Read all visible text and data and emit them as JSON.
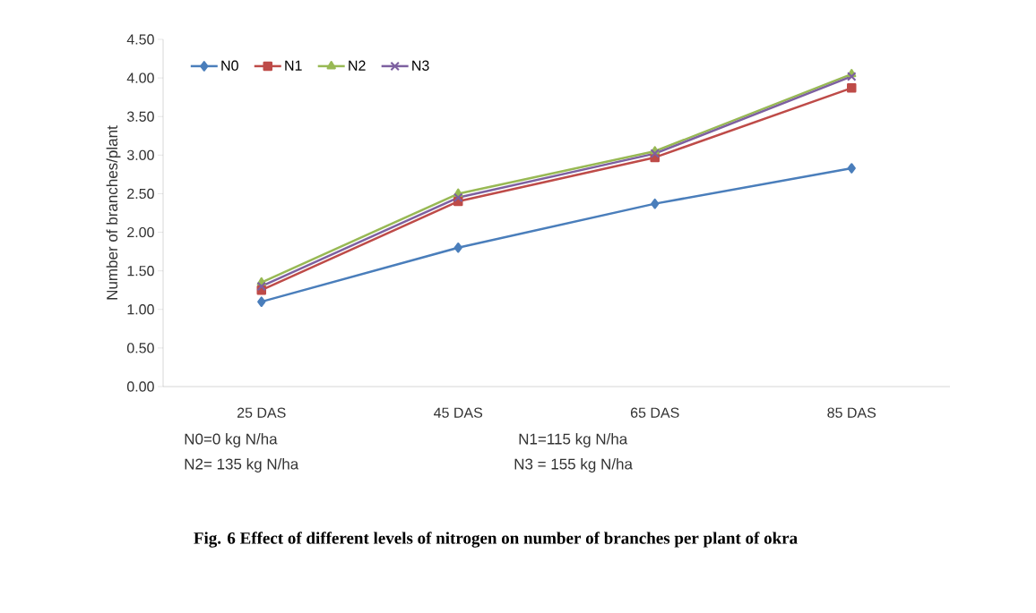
{
  "chart_data": {
    "type": "line",
    "ylabel": "Number of branches/plant",
    "categories": [
      "25 DAS",
      "45 DAS",
      "65 DAS",
      "85 DAS"
    ],
    "series": [
      {
        "name": "N0",
        "color": "#4a7ebb",
        "marker": "diamond",
        "values": [
          1.1,
          1.8,
          2.37,
          2.83
        ]
      },
      {
        "name": "N1",
        "color": "#be4b48",
        "marker": "square",
        "values": [
          1.25,
          2.4,
          2.97,
          3.87
        ]
      },
      {
        "name": "N2",
        "color": "#98b954",
        "marker": "triangle",
        "values": [
          1.35,
          2.5,
          3.05,
          4.05
        ]
      },
      {
        "name": "N3",
        "color": "#7d60a0",
        "marker": "cross",
        "values": [
          1.3,
          2.45,
          3.02,
          4.02
        ]
      }
    ],
    "ylim": [
      0,
      4.5
    ],
    "yticks": [
      {
        "value": 0,
        "label": "0.00"
      },
      {
        "value": 0.5,
        "label": "0.50"
      },
      {
        "value": 1,
        "label": "1.00"
      },
      {
        "value": 1.5,
        "label": "1.50"
      },
      {
        "value": 2,
        "label": "2.00"
      },
      {
        "value": 2.5,
        "label": "2.50"
      },
      {
        "value": 3,
        "label": "3.00"
      },
      {
        "value": 3.5,
        "label": "3.50"
      },
      {
        "value": 4,
        "label": "4.00"
      },
      {
        "value": 4.5,
        "label": "4.50"
      }
    ],
    "grid": false,
    "legend": "top left",
    "line_style": "solid",
    "annotations": [
      "N0=0 kg N/ha",
      "N1=115 kg N/ha",
      "N2= 135 kg N/ha",
      "N3 = 155 kg N/ha",
      "Fig. 6 Effect of different levels of nitrogen on number of branches per plant of okra"
    ]
  }
}
